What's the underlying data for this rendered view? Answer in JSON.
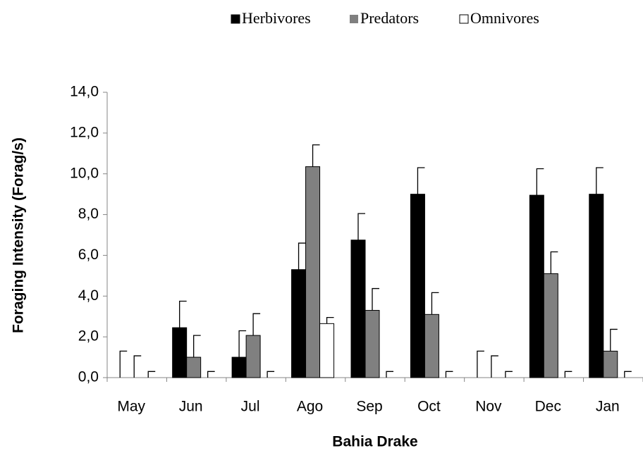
{
  "chart_data": {
    "type": "bar",
    "x_label": "Bahia Drake",
    "y_label": "Foraging Intensity (Forag/s)",
    "categories": [
      "May",
      "Jun",
      "Jul",
      "Ago",
      "Sep",
      "Oct",
      "Nov",
      "Dec",
      "Jan"
    ],
    "series": [
      {
        "name": "Herbivores",
        "color": "#000000",
        "values": [
          0,
          2.45,
          1.0,
          5.3,
          6.75,
          9.0,
          0,
          8.95,
          9.0
        ],
        "errors": [
          1.3,
          1.3,
          1.3,
          1.3,
          1.3,
          1.3,
          1.3,
          1.3,
          1.3
        ]
      },
      {
        "name": "Predators",
        "color": "#808080",
        "values": [
          0,
          1.0,
          2.07,
          10.35,
          3.3,
          3.1,
          0,
          5.1,
          1.3
        ],
        "errors": [
          1.07,
          1.07,
          1.07,
          1.07,
          1.07,
          1.07,
          1.07,
          1.07,
          1.07
        ]
      },
      {
        "name": "Omnivores",
        "color": "#ffffff",
        "values": [
          0,
          0,
          0,
          2.65,
          0,
          0,
          0,
          0,
          0
        ],
        "errors": [
          0.3,
          0.3,
          0.3,
          0.3,
          0.3,
          0.3,
          0.3,
          0.3,
          0.3
        ]
      }
    ],
    "ylim": [
      0,
      14
    ],
    "yticks": [
      {
        "value": 0,
        "label": "0,0"
      },
      {
        "value": 2,
        "label": "2,0"
      },
      {
        "value": 4,
        "label": "4,0"
      },
      {
        "value": 6,
        "label": "6,0"
      },
      {
        "value": 8,
        "label": "8,0"
      },
      {
        "value": 10,
        "label": "10,0"
      },
      {
        "value": 12,
        "label": "12,0"
      },
      {
        "value": 14,
        "label": "14,0"
      }
    ],
    "legend": "top-right",
    "grid": false
  }
}
